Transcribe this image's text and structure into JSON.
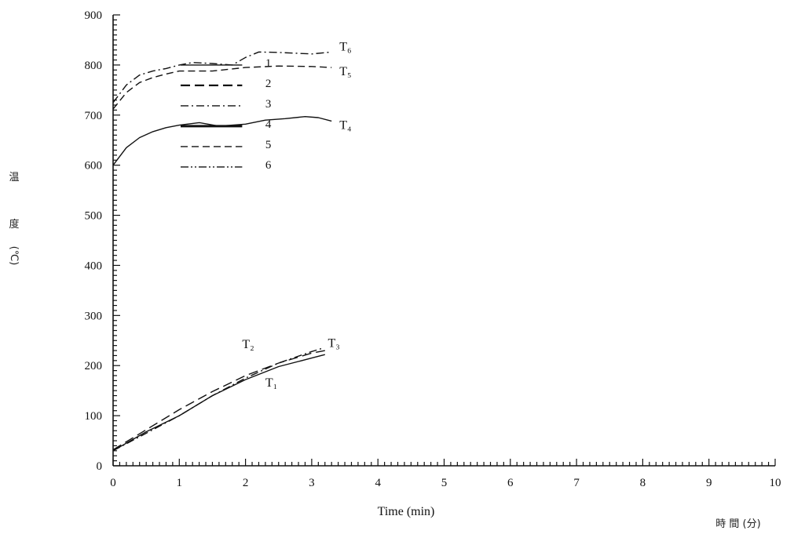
{
  "chart_data": {
    "type": "line",
    "title": "",
    "xlabel": "Time (min)",
    "xlabel_cjk": "時 間 (分)",
    "ylabel": "温度(℃)",
    "ylabel_chars": [
      "温",
      "度",
      "(℃)"
    ],
    "xlim": [
      0,
      10
    ],
    "ylim": [
      0,
      900
    ],
    "x_ticks": [
      "0",
      "1",
      "2",
      "3",
      "4",
      "5",
      "6",
      "7",
      "8",
      "9",
      "10"
    ],
    "y_ticks": [
      "0",
      "100",
      "200",
      "300",
      "400",
      "500",
      "600",
      "700",
      "800",
      "900"
    ],
    "grid": false,
    "legend_position": "upper-left inside plot",
    "legend": [
      {
        "label": "1",
        "style": "solid"
      },
      {
        "label": "2",
        "style": "long-dash"
      },
      {
        "label": "3",
        "style": "dash-dot"
      },
      {
        "label": "4",
        "style": "thick-solid"
      },
      {
        "label": "5",
        "style": "dash"
      },
      {
        "label": "6",
        "style": "dash-dot-dot"
      }
    ],
    "series": [
      {
        "name": "T₆",
        "style": "dash-dot",
        "x": [
          0,
          0.2,
          0.4,
          0.6,
          0.8,
          1.0,
          1.2,
          1.5,
          1.8,
          2.0,
          2.2,
          2.5,
          3.0,
          3.3
        ],
        "y": [
          725,
          760,
          780,
          788,
          793,
          800,
          805,
          803,
          800,
          815,
          826,
          825,
          822,
          826
        ]
      },
      {
        "name": "T₅",
        "style": "dash",
        "x": [
          0,
          0.2,
          0.4,
          0.6,
          0.8,
          1.0,
          1.5,
          2.0,
          2.5,
          3.0,
          3.3
        ],
        "y": [
          712,
          745,
          765,
          775,
          782,
          788,
          788,
          795,
          798,
          797,
          795
        ]
      },
      {
        "name": "T₄",
        "style": "solid",
        "x": [
          0,
          0.2,
          0.4,
          0.6,
          0.8,
          1.0,
          1.3,
          1.6,
          2.0,
          2.3,
          2.6,
          2.9,
          3.1,
          3.3
        ],
        "y": [
          600,
          635,
          655,
          667,
          675,
          680,
          685,
          678,
          682,
          690,
          693,
          697,
          695,
          688
        ]
      },
      {
        "name": "T₃",
        "style": "dash-dot",
        "x": [
          0,
          0.5,
          1.0,
          1.5,
          2.0,
          2.5,
          3.0,
          3.15
        ],
        "y": [
          30,
          65,
          100,
          140,
          175,
          205,
          228,
          234
        ]
      },
      {
        "name": "T₂",
        "style": "long-dash",
        "x": [
          0,
          0.5,
          1.0,
          1.5,
          2.0,
          2.5,
          3.0,
          3.2
        ],
        "y": [
          32,
          72,
          112,
          148,
          180,
          205,
          225,
          230
        ]
      },
      {
        "name": "T₁",
        "style": "solid",
        "x": [
          0,
          0.5,
          1.0,
          1.5,
          2.0,
          2.5,
          3.0,
          3.2
        ],
        "y": [
          30,
          68,
          100,
          140,
          172,
          198,
          215,
          222
        ]
      }
    ]
  }
}
